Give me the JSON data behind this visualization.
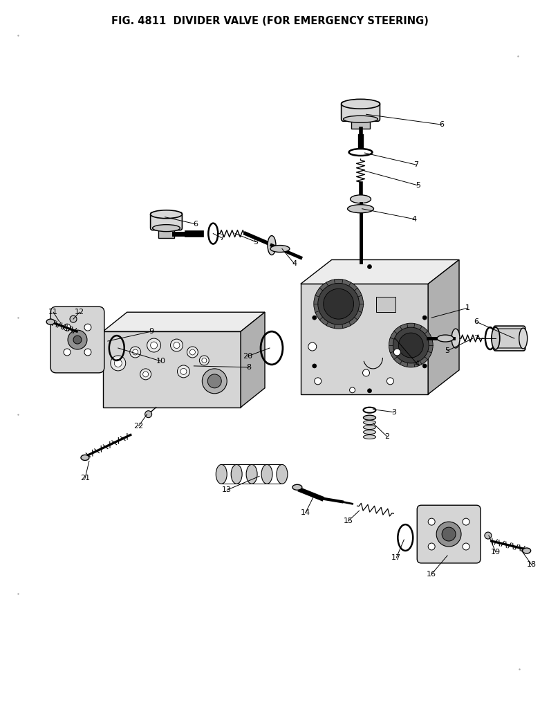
{
  "title": "FIG. 4811  DIVIDER VALVE (FOR EMERGENCY STEERING)",
  "title_fontsize": 10.5,
  "title_fontweight": "bold",
  "bg_color": "#ffffff",
  "fig_width": 7.81,
  "fig_height": 10.19
}
